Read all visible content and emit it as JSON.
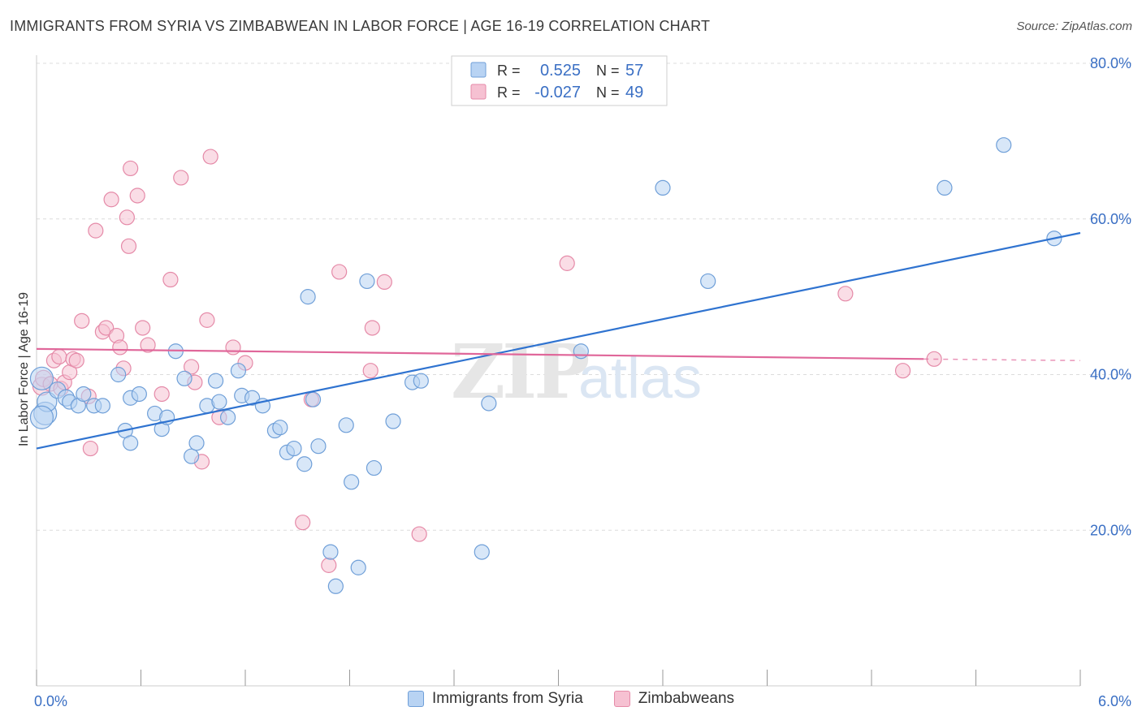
{
  "header": {
    "title": "IMMIGRANTS FROM SYRIA VS ZIMBABWEAN IN LABOR FORCE | AGE 16-19 CORRELATION CHART",
    "source": "Source: ZipAtlas.com"
  },
  "watermark": {
    "zip": "ZIP",
    "atlas": "atlas"
  },
  "colors": {
    "syria_fill": "#b8d3f3",
    "syria_stroke": "#6f9fd8",
    "syria_line": "#2f73d0",
    "zimb_fill": "#f6c1d2",
    "zimb_stroke": "#e58aa8",
    "zimb_line": "#e0679a",
    "accent_text": "#3a6fc4",
    "grid": "#dcdcdc"
  },
  "legend_top": [
    {
      "r_label": "R = ",
      "r_value": "0.525",
      "n_label": "N = ",
      "n_value": "57"
    },
    {
      "r_label": "R = ",
      "r_value": "-0.027",
      "n_label": "N = ",
      "n_value": "49"
    }
  ],
  "legend_bottom": [
    "Immigrants from Syria",
    "Zimbabweans"
  ],
  "chart_data": {
    "type": "scatter",
    "title": "IMMIGRANTS FROM SYRIA VS ZIMBABWEAN IN LABOR FORCE | AGE 16-19 CORRELATION CHART",
    "xlabel": "",
    "ylabel": "In Labor Force | Age 16-19",
    "xlim": [
      0,
      6
    ],
    "ylim": [
      0,
      80
    ],
    "x_tick_labels": [
      "0.0%",
      "6.0%"
    ],
    "y_ticks": [
      20,
      40,
      60,
      80
    ],
    "y_tick_labels": [
      "20.0%",
      "40.0%",
      "60.0%",
      "80.0%"
    ],
    "grid": true,
    "legend_position": "top-center",
    "series": [
      {
        "name": "Immigrants from Syria",
        "r": 0.525,
        "n": 57,
        "trend": {
          "x": [
            0.0,
            6.0
          ],
          "y": [
            30.5,
            58.2
          ]
        },
        "points": [
          [
            0.03,
            39.5,
            14
          ],
          [
            0.05,
            35.0,
            14
          ],
          [
            0.06,
            36.5,
            12
          ],
          [
            0.12,
            38.0,
            10
          ],
          [
            0.17,
            37.0,
            10
          ],
          [
            0.19,
            36.5,
            9
          ],
          [
            0.24,
            36.0,
            9
          ],
          [
            0.27,
            37.5,
            9
          ],
          [
            0.33,
            36.0,
            9
          ],
          [
            0.38,
            36.0,
            9
          ],
          [
            0.47,
            40.0,
            9
          ],
          [
            0.51,
            32.8,
            9
          ],
          [
            0.54,
            37.0,
            9
          ],
          [
            0.59,
            37.5,
            9
          ],
          [
            0.68,
            35.0,
            9
          ],
          [
            0.72,
            33.0,
            9
          ],
          [
            0.75,
            34.5,
            9
          ],
          [
            0.8,
            43.0,
            9
          ],
          [
            0.85,
            39.5,
            9
          ],
          [
            0.89,
            29.5,
            9
          ],
          [
            0.92,
            31.2,
            9
          ],
          [
            0.98,
            36.0,
            9
          ],
          [
            1.03,
            39.2,
            9
          ],
          [
            1.05,
            36.5,
            9
          ],
          [
            1.1,
            34.5,
            9
          ],
          [
            1.16,
            40.5,
            9
          ],
          [
            1.18,
            37.3,
            9
          ],
          [
            1.24,
            37.0,
            9
          ],
          [
            1.3,
            36.0,
            9
          ],
          [
            1.37,
            32.8,
            9
          ],
          [
            1.4,
            33.2,
            9
          ],
          [
            1.44,
            30.0,
            9
          ],
          [
            1.48,
            30.5,
            9
          ],
          [
            1.54,
            28.5,
            9
          ],
          [
            1.56,
            50.0,
            9
          ],
          [
            1.59,
            36.8,
            9
          ],
          [
            1.62,
            30.8,
            9
          ],
          [
            1.69,
            17.2,
            9
          ],
          [
            1.72,
            12.8,
            9
          ],
          [
            1.78,
            33.5,
            9
          ],
          [
            1.81,
            26.2,
            9
          ],
          [
            1.85,
            15.2,
            9
          ],
          [
            1.9,
            52.0,
            9
          ],
          [
            1.94,
            28.0,
            9
          ],
          [
            2.05,
            34.0,
            9
          ],
          [
            2.16,
            39.0,
            9
          ],
          [
            2.21,
            39.2,
            9
          ],
          [
            2.56,
            17.2,
            9
          ],
          [
            2.6,
            36.3,
            9
          ],
          [
            3.13,
            43.0,
            9
          ],
          [
            3.6,
            64.0,
            9
          ],
          [
            3.86,
            52.0,
            9
          ],
          [
            5.22,
            64.0,
            9
          ],
          [
            5.56,
            69.5,
            9
          ],
          [
            5.85,
            57.5,
            9
          ],
          [
            0.03,
            34.5,
            14
          ],
          [
            0.54,
            31.2,
            9
          ]
        ]
      },
      {
        "name": "Zimbabweans",
        "r": -0.027,
        "n": 49,
        "trend": {
          "x": [
            0.0,
            5.1
          ],
          "y": [
            43.3,
            42.0
          ],
          "dash_to_x": 6.0,
          "dash_to_y": 41.8
        },
        "points": [
          [
            0.03,
            38.5,
            11
          ],
          [
            0.04,
            39.5,
            10
          ],
          [
            0.08,
            38.8,
            9
          ],
          [
            0.1,
            41.8,
            9
          ],
          [
            0.13,
            42.3,
            9
          ],
          [
            0.14,
            38.2,
            9
          ],
          [
            0.16,
            39.0,
            9
          ],
          [
            0.19,
            40.3,
            9
          ],
          [
            0.21,
            42.0,
            9
          ],
          [
            0.23,
            41.8,
            9
          ],
          [
            0.26,
            46.9,
            9
          ],
          [
            0.3,
            37.2,
            9
          ],
          [
            0.31,
            30.5,
            9
          ],
          [
            0.34,
            58.5,
            9
          ],
          [
            0.38,
            45.5,
            9
          ],
          [
            0.4,
            46.0,
            9
          ],
          [
            0.43,
            62.5,
            9
          ],
          [
            0.46,
            45.0,
            9
          ],
          [
            0.48,
            43.5,
            9
          ],
          [
            0.5,
            40.8,
            9
          ],
          [
            0.53,
            56.5,
            9
          ],
          [
            0.54,
            66.5,
            9
          ],
          [
            0.61,
            46.0,
            9
          ],
          [
            0.64,
            43.8,
            9
          ],
          [
            0.72,
            37.5,
            9
          ],
          [
            0.77,
            52.2,
            9
          ],
          [
            0.83,
            65.3,
            9
          ],
          [
            0.89,
            41.0,
            9
          ],
          [
            0.91,
            39.0,
            9
          ],
          [
            0.95,
            28.8,
            9
          ],
          [
            0.98,
            47.0,
            9
          ],
          [
            1.0,
            68.0,
            9
          ],
          [
            1.05,
            34.5,
            9
          ],
          [
            1.13,
            43.5,
            9
          ],
          [
            1.2,
            41.5,
            9
          ],
          [
            1.53,
            21.0,
            9
          ],
          [
            1.58,
            36.8,
            9
          ],
          [
            1.68,
            15.5,
            9
          ],
          [
            1.74,
            53.2,
            9
          ],
          [
            1.92,
            40.5,
            9
          ],
          [
            1.93,
            46.0,
            9
          ],
          [
            2.0,
            51.9,
            9
          ],
          [
            2.2,
            19.5,
            9
          ],
          [
            3.05,
            54.3,
            9
          ],
          [
            4.65,
            50.4,
            9
          ],
          [
            4.98,
            40.5,
            9
          ],
          [
            5.16,
            42.0,
            9
          ],
          [
            0.58,
            63.0,
            9
          ],
          [
            0.52,
            60.2,
            9
          ]
        ]
      }
    ]
  },
  "axes": {
    "ylabel": "In Labor Force | Age 16-19"
  }
}
